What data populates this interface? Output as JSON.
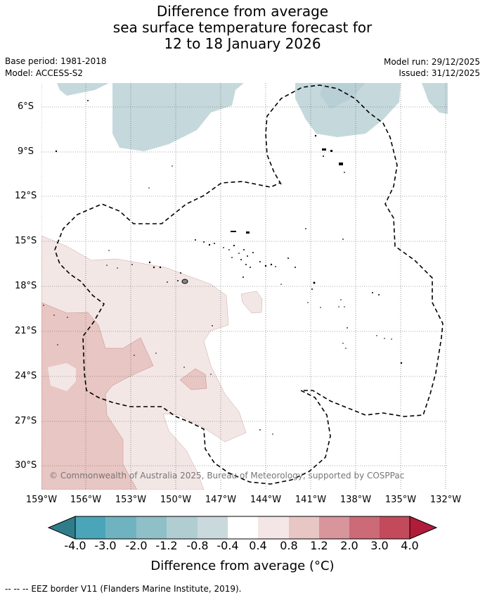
{
  "title": {
    "line1": "Difference from average",
    "line2": "sea surface temperature forecast for",
    "line3": "12 to 18 January 2026"
  },
  "meta": {
    "base_period": "Base period: 1981-2018",
    "model": "Model: ACCESS-S2",
    "model_run": "Model run: 29/12/2025",
    "issued": "Issued: 31/12/2025"
  },
  "map": {
    "lat_labels": [
      "6°S",
      "9°S",
      "12°S",
      "15°S",
      "18°S",
      "21°S",
      "24°S",
      "27°S",
      "30°S"
    ],
    "lon_labels": [
      "159°W",
      "156°W",
      "153°W",
      "150°W",
      "147°W",
      "144°W",
      "141°W",
      "138°W",
      "135°W",
      "132°W"
    ],
    "copyright": "© Commonwealth of Australia 2025, Bureau of Meteorology, supported by COSPPac",
    "colors": {
      "cool": "#c5d9dd",
      "warm_light": "#f3e7e6",
      "warm_mid": "#e8c6c3",
      "eez": "#000000",
      "grid": "#555555"
    }
  },
  "colorbar": {
    "ticks": [
      "-4.0",
      "-3.0",
      "-2.0",
      "-1.2",
      "-0.8",
      "-0.4",
      "0.4",
      "0.8",
      "1.2",
      "2.0",
      "3.0",
      "4.0"
    ],
    "colors": [
      "#2f7d8a",
      "#4aa5b8",
      "#6fb3c1",
      "#8fbfc7",
      "#b0cdd2",
      "#c9d9dc",
      "#ffffff",
      "#f4e6e6",
      "#e8c6c3",
      "#d8959b",
      "#cc6a77",
      "#c24a5b",
      "#b01c3a"
    ],
    "label": "Difference from average (°C)"
  },
  "legend": {
    "eez": "--  --  -- EEZ border V11 (Flanders Marine Institute, 2019)."
  }
}
